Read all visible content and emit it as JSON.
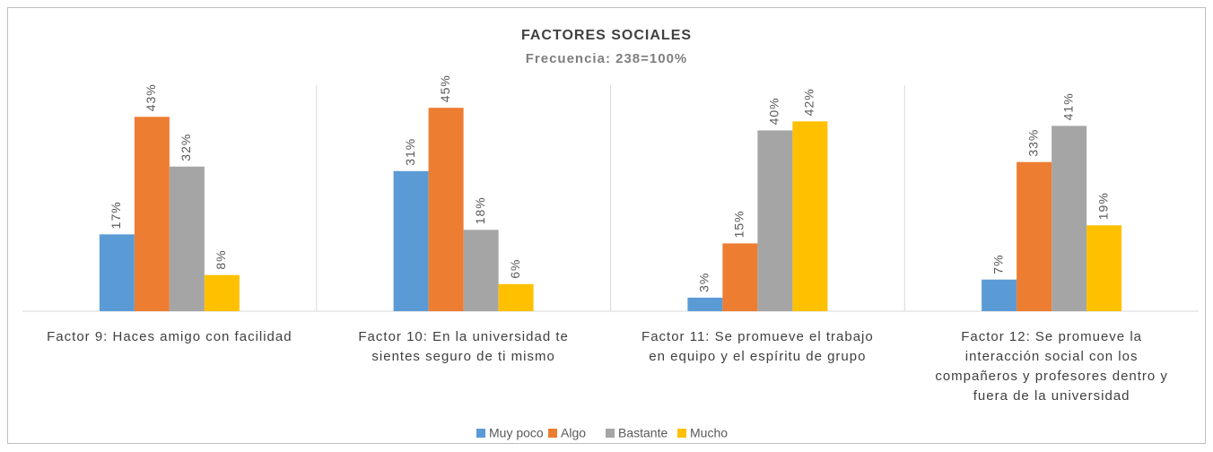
{
  "chart_data": {
    "type": "bar",
    "title": "FACTORES SOCIALES",
    "subtitle": "Frecuencia: 238=100%",
    "categories": [
      "Factor 9: Haces amigo con facilidad",
      "Factor 10: En la universidad te sientes seguro de ti mismo",
      "Factor 11: Se promueve el trabajo en equipo y el espíritu de grupo",
      "Factor 12: Se promueve la interacción social con los compañeros y profesores dentro y fuera de la universidad"
    ],
    "series": [
      {
        "name": "Muy poco",
        "color": "#5b9bd5",
        "values": [
          17,
          31,
          3,
          7
        ],
        "value_labels": [
          "17%",
          "31%",
          "3%",
          "7%"
        ]
      },
      {
        "name": "Algo",
        "color": "#ed7d31",
        "values": [
          43,
          45,
          15,
          33
        ],
        "value_labels": [
          "43%",
          "45%",
          "15%",
          "33%"
        ]
      },
      {
        "name": "Bastante",
        "color": "#a5a5a5",
        "values": [
          32,
          18,
          40,
          41
        ],
        "value_labels": [
          "32%",
          "18%",
          "40%",
          "41%"
        ]
      },
      {
        "name": "Mucho",
        "color": "#ffc000",
        "values": [
          8,
          6,
          42,
          19
        ],
        "value_labels": [
          "8%",
          "6%",
          "42%",
          "19%"
        ]
      }
    ],
    "ylim": [
      0,
      50
    ],
    "legend": "bottom"
  }
}
